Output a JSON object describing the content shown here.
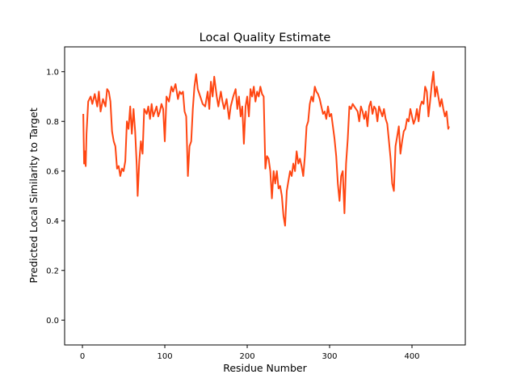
{
  "chart_data": {
    "type": "line",
    "title": "Local Quality Estimate",
    "xlabel": "Residue Number",
    "ylabel": "Predicted Local Similarity to Target",
    "xlim": [
      -21.6,
      464.7
    ],
    "ylim": [
      -0.1,
      1.1
    ],
    "xticks": [
      0,
      100,
      200,
      300,
      400
    ],
    "yticks": [
      0.0,
      0.2,
      0.4,
      0.6,
      0.8,
      1.0
    ],
    "ytick_labels": [
      "0.0",
      "0.2",
      "0.4",
      "0.6",
      "0.8",
      "1.0"
    ],
    "grid": false,
    "line_color": "#ff4612",
    "x": [
      1,
      2,
      3,
      4,
      5,
      7,
      10,
      12,
      15,
      18,
      20,
      22,
      25,
      28,
      30,
      32,
      34,
      36,
      38,
      40,
      42,
      44,
      46,
      48,
      50,
      52,
      54,
      56,
      58,
      60,
      62,
      64,
      66,
      67,
      69,
      71,
      73,
      75,
      78,
      80,
      82,
      84,
      86,
      88,
      90,
      92,
      94,
      96,
      98,
      100,
      102,
      105,
      108,
      110,
      113,
      116,
      118,
      120,
      122,
      124,
      126,
      128,
      130,
      132,
      134,
      136,
      138,
      140,
      143,
      146,
      149,
      152,
      154,
      156,
      158,
      160,
      163,
      165,
      168,
      170,
      172,
      175,
      178,
      180,
      183,
      186,
      188,
      190,
      192,
      194,
      196,
      198,
      200,
      202,
      204,
      206,
      208,
      210,
      212,
      214,
      216,
      218,
      220,
      222,
      224,
      226,
      228,
      230,
      232,
      234,
      236,
      238,
      240,
      242,
      244,
      246,
      248,
      250,
      252,
      254,
      256,
      258,
      260,
      262,
      264,
      266,
      268,
      270,
      272,
      274,
      276,
      278,
      280,
      282,
      284,
      286,
      288,
      290,
      292,
      294,
      296,
      298,
      300,
      302,
      304,
      306,
      308,
      310,
      312,
      314,
      316,
      318,
      320,
      322,
      324,
      326,
      328,
      330,
      332,
      334,
      336,
      338,
      340,
      342,
      344,
      346,
      348,
      350,
      352,
      354,
      356,
      358,
      360,
      362,
      364,
      366,
      368,
      370,
      372,
      374,
      376,
      378,
      380,
      382,
      384,
      386,
      388,
      390,
      392,
      394,
      396,
      398,
      400,
      402,
      404,
      406,
      408,
      410,
      412,
      414,
      416,
      418,
      420,
      422,
      424,
      426,
      428,
      430,
      432,
      434,
      436,
      438,
      440,
      442,
      444,
      445
    ],
    "y": [
      0.83,
      0.63,
      0.68,
      0.62,
      0.75,
      0.88,
      0.9,
      0.87,
      0.91,
      0.86,
      0.92,
      0.84,
      0.89,
      0.86,
      0.93,
      0.92,
      0.88,
      0.76,
      0.72,
      0.7,
      0.61,
      0.62,
      0.58,
      0.61,
      0.6,
      0.64,
      0.8,
      0.77,
      0.86,
      0.75,
      0.85,
      0.76,
      0.62,
      0.5,
      0.64,
      0.72,
      0.67,
      0.85,
      0.83,
      0.86,
      0.81,
      0.87,
      0.82,
      0.84,
      0.86,
      0.82,
      0.84,
      0.87,
      0.85,
      0.72,
      0.9,
      0.88,
      0.94,
      0.92,
      0.95,
      0.89,
      0.92,
      0.91,
      0.92,
      0.84,
      0.82,
      0.58,
      0.7,
      0.72,
      0.85,
      0.94,
      0.99,
      0.93,
      0.9,
      0.87,
      0.86,
      0.92,
      0.85,
      0.96,
      0.9,
      0.98,
      0.9,
      0.86,
      0.92,
      0.88,
      0.85,
      0.89,
      0.81,
      0.86,
      0.9,
      0.93,
      0.85,
      0.9,
      0.82,
      0.86,
      0.71,
      0.86,
      0.9,
      0.82,
      0.93,
      0.9,
      0.94,
      0.88,
      0.92,
      0.9,
      0.94,
      0.91,
      0.9,
      0.61,
      0.66,
      0.65,
      0.6,
      0.49,
      0.6,
      0.55,
      0.6,
      0.53,
      0.54,
      0.5,
      0.42,
      0.38,
      0.52,
      0.56,
      0.6,
      0.58,
      0.63,
      0.6,
      0.68,
      0.63,
      0.65,
      0.62,
      0.58,
      0.66,
      0.78,
      0.8,
      0.87,
      0.9,
      0.88,
      0.94,
      0.92,
      0.91,
      0.89,
      0.86,
      0.83,
      0.84,
      0.81,
      0.86,
      0.82,
      0.83,
      0.78,
      0.73,
      0.66,
      0.55,
      0.48,
      0.58,
      0.6,
      0.43,
      0.63,
      0.73,
      0.86,
      0.85,
      0.87,
      0.86,
      0.85,
      0.84,
      0.8,
      0.86,
      0.84,
      0.81,
      0.84,
      0.78,
      0.86,
      0.88,
      0.83,
      0.86,
      0.85,
      0.8,
      0.86,
      0.84,
      0.82,
      0.85,
      0.81,
      0.79,
      0.72,
      0.65,
      0.55,
      0.52,
      0.7,
      0.74,
      0.78,
      0.67,
      0.72,
      0.76,
      0.77,
      0.81,
      0.8,
      0.85,
      0.82,
      0.79,
      0.81,
      0.85,
      0.8,
      0.86,
      0.88,
      0.87,
      0.94,
      0.92,
      0.82,
      0.88,
      0.95,
      1.0,
      0.9,
      0.94,
      0.9,
      0.86,
      0.89,
      0.85,
      0.82,
      0.84,
      0.77,
      0.78
    ]
  }
}
